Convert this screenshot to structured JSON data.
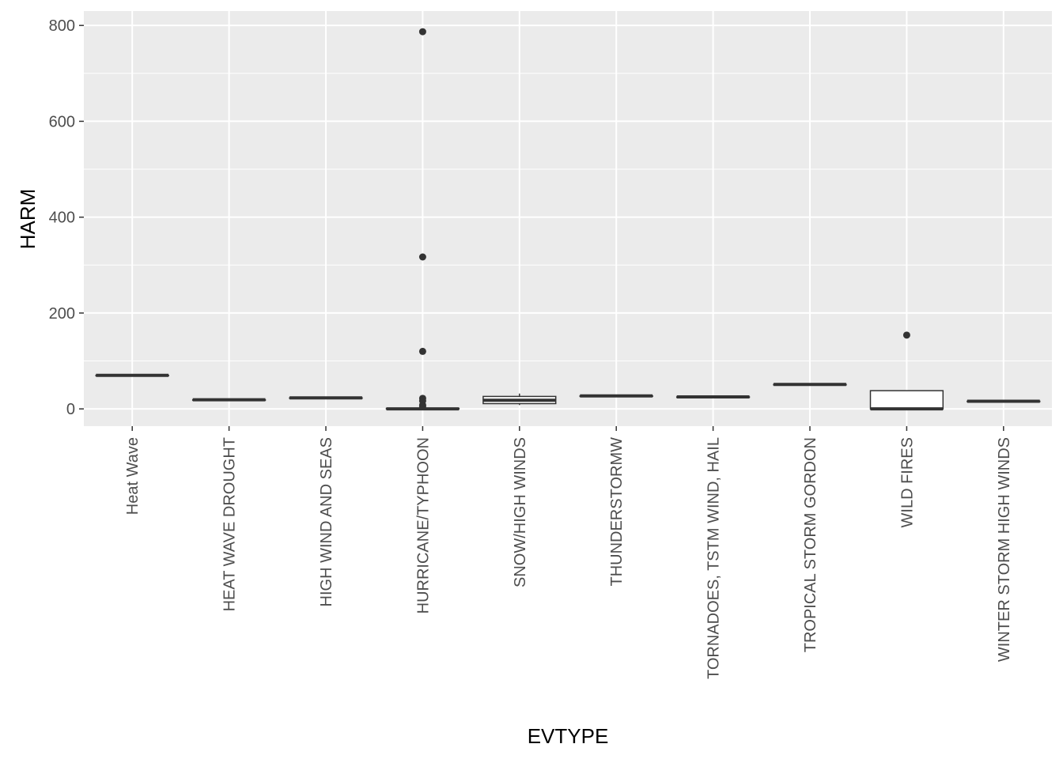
{
  "chart_data": {
    "type": "boxplot",
    "xlabel": "EVTYPE",
    "ylabel": "HARM",
    "ylim": [
      -36,
      830
    ],
    "yticks": [
      0,
      200,
      400,
      600,
      800
    ],
    "grid": true,
    "legend": "none",
    "colors": {
      "panel_bg": "#ebebeb",
      "grid_major": "#ffffff",
      "box_fill": "#ffffff",
      "box_line": "#333333",
      "outlier": "#333333"
    },
    "categories": [
      "Heat Wave",
      "HEAT WAVE DROUGHT",
      "HIGH WIND AND SEAS",
      "HURRICANE/TYPHOON",
      "SNOW/HIGH WINDS",
      "THUNDERSTORMW",
      "TORNADOES, TSTM WIND, HAIL",
      "TROPICAL STORM GORDON",
      "WILD FIRES",
      "WINTER STORM HIGH WINDS"
    ],
    "boxes": [
      {
        "min": 70,
        "q1": 70,
        "median": 70,
        "q3": 70,
        "max": 70,
        "outliers": []
      },
      {
        "min": 19,
        "q1": 19,
        "median": 19,
        "q3": 19,
        "max": 19,
        "outliers": []
      },
      {
        "min": 23,
        "q1": 23,
        "median": 23,
        "q3": 23,
        "max": 23,
        "outliers": []
      },
      {
        "min": 0,
        "q1": 0,
        "median": 0,
        "q3": 1,
        "max": 2,
        "outliers": [
          787,
          317,
          120,
          22,
          17,
          8,
          5
        ]
      },
      {
        "min": 8,
        "q1": 11,
        "median": 18,
        "q3": 26,
        "max": 32,
        "outliers": []
      },
      {
        "min": 27,
        "q1": 27,
        "median": 27,
        "q3": 27,
        "max": 27,
        "outliers": []
      },
      {
        "min": 25,
        "q1": 25,
        "median": 25,
        "q3": 25,
        "max": 25,
        "outliers": []
      },
      {
        "min": 51,
        "q1": 51,
        "median": 51,
        "q3": 51,
        "max": 51,
        "outliers": []
      },
      {
        "min": 0,
        "q1": 0,
        "median": 0,
        "q3": 38,
        "max": 38,
        "outliers": [
          154
        ]
      },
      {
        "min": 16,
        "q1": 16,
        "median": 16,
        "q3": 16,
        "max": 16,
        "outliers": []
      }
    ]
  }
}
